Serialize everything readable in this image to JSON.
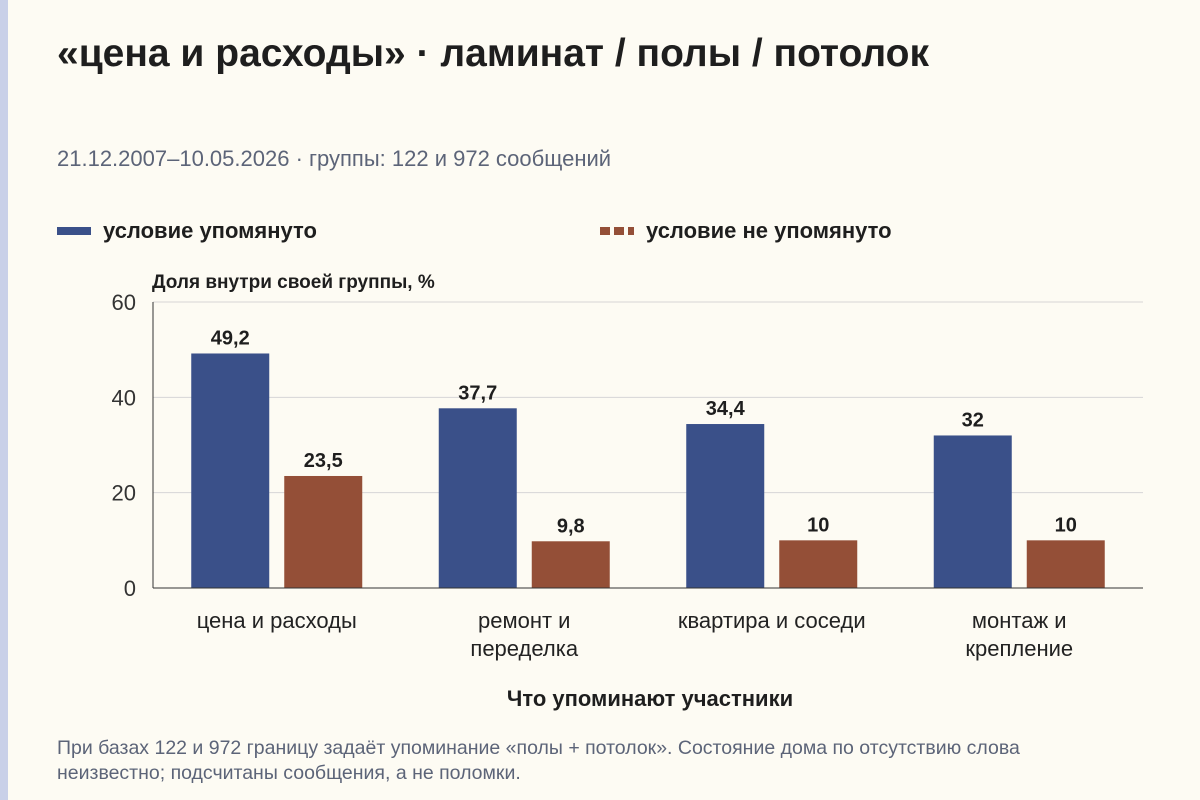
{
  "title": "«цена и расходы» · ламинат / полы / потолок",
  "subtitle": "21.12.2007–10.05.2026 · группы: 122 и 972 сообщений",
  "footnote": "При базах 122 и 972 границу задаёт упоминание «полы + потолок». Состояние дома по отсутствию слова неизвестно; подсчитаны сообщения, а не поломки.",
  "colors": {
    "mentioned": "#3a5089",
    "not_mentioned": "#944f37",
    "background": "#fdfbf3"
  },
  "chart_data": {
    "type": "bar",
    "title": "«цена и расходы» · ламинат / полы / потолок",
    "subtitle": "21.12.2007–10.05.2026 · группы: 122 и 972 сообщений",
    "xlabel": "Что упоминают участники",
    "ylabel": "Доля внутри своей группы, %",
    "ylim": [
      0,
      60
    ],
    "yticks": [
      0,
      20,
      40,
      60
    ],
    "grid": true,
    "legend_position": "top",
    "categories": [
      [
        "цена и расходы"
      ],
      [
        "ремонт и",
        "переделка"
      ],
      [
        "квартира и соседи"
      ],
      [
        "монтаж и",
        "крепление"
      ]
    ],
    "series": [
      {
        "name": "условие упомянуто",
        "color": "#3a5089",
        "values": [
          49.2,
          37.7,
          34.4,
          32
        ],
        "labels": [
          "49,2",
          "37,7",
          "34,4",
          "32"
        ]
      },
      {
        "name": "условие не упомянуто",
        "color": "#944f37",
        "values": [
          23.5,
          9.8,
          10,
          10
        ],
        "labels": [
          "23,5",
          "9,8",
          "10",
          "10"
        ]
      }
    ]
  }
}
